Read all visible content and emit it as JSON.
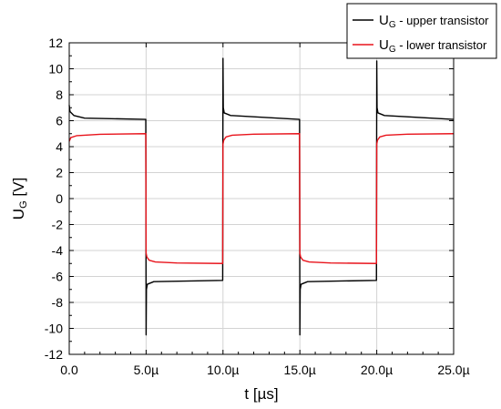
{
  "chart_data": {
    "type": "line",
    "xlabel": "t [µs]",
    "ylabel": {
      "main": "U",
      "sub": "G",
      "unit": " [V]"
    },
    "xlim": [
      0,
      25
    ],
    "ylim": [
      -12,
      12
    ],
    "x_ticks": [
      {
        "value": 0,
        "label": "0.0"
      },
      {
        "value": 5,
        "label": "5.0µ"
      },
      {
        "value": 10,
        "label": "10.0µ"
      },
      {
        "value": 15,
        "label": "15.0µ"
      },
      {
        "value": 20,
        "label": "20.0µ"
      },
      {
        "value": 25,
        "label": "25.0µ"
      }
    ],
    "y_ticks": [
      -12,
      -10,
      -8,
      -6,
      -4,
      -2,
      0,
      2,
      4,
      6,
      8,
      10,
      12
    ],
    "grid": true,
    "legend_position": "top-right",
    "series": [
      {
        "name": {
          "main": "U",
          "sub": "G",
          "text": " - upper transistor"
        },
        "color": "#000000",
        "x": [
          0,
          0.05,
          0.3,
          1,
          4.98,
          5.0,
          5.02,
          5.08,
          5.5,
          9.98,
          10.0,
          10.02,
          10.08,
          10.5,
          14.98,
          15.0,
          15.02,
          15.08,
          15.5,
          19.98,
          20.0,
          20.02,
          20.08,
          20.5,
          25
        ],
        "y": [
          7.2,
          6.7,
          6.4,
          6.2,
          6.1,
          -10.5,
          -7.0,
          -6.6,
          -6.4,
          -6.3,
          10.8,
          7.0,
          6.6,
          6.4,
          6.1,
          -10.5,
          -7.0,
          -6.6,
          -6.4,
          -6.3,
          10.6,
          7.0,
          6.6,
          6.4,
          6.1
        ]
      },
      {
        "name": {
          "main": "U",
          "sub": "G",
          "text": " - lower transistor"
        },
        "color": "#e8131b",
        "x": [
          0,
          0.1,
          0.5,
          2,
          4.98,
          5.0,
          5.05,
          5.2,
          5.6,
          7,
          9.98,
          10.0,
          10.05,
          10.2,
          10.6,
          12,
          14.98,
          15.0,
          15.05,
          15.2,
          15.6,
          17,
          19.98,
          20.0,
          20.05,
          20.2,
          20.6,
          22,
          25
        ],
        "y": [
          4.4,
          4.7,
          4.85,
          4.95,
          5.0,
          -4.2,
          -4.5,
          -4.75,
          -4.88,
          -4.96,
          -5.0,
          4.2,
          4.5,
          4.75,
          4.88,
          4.96,
          5.0,
          -4.2,
          -4.5,
          -4.75,
          -4.88,
          -4.96,
          -5.0,
          4.2,
          4.5,
          4.75,
          4.88,
          4.96,
          5.0
        ]
      }
    ]
  }
}
